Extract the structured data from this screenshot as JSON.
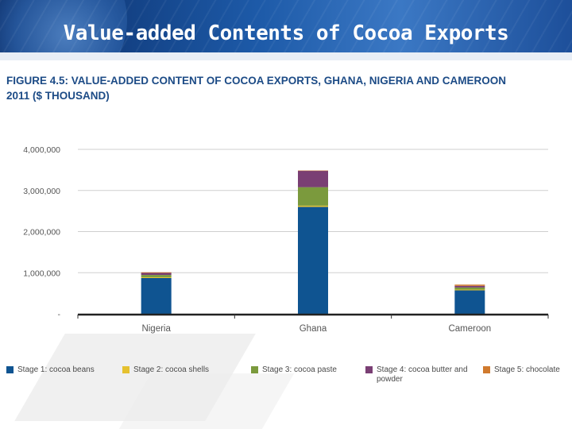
{
  "slide": {
    "title": "Value-added Contents of Cocoa Exports"
  },
  "figure": {
    "title": "FIGURE 4.5: VALUE-ADDED CONTENT OF COCOA EXPORTS, GHANA, NIGERIA AND CAMEROON 2011 ($ THOUSAND)"
  },
  "colors": {
    "header_bg": "#1d5aa8",
    "title_text": "#1c4b86",
    "grid": "#cfcfcf"
  },
  "chart_data": {
    "type": "bar",
    "stacked": true,
    "categories": [
      "Nigeria",
      "Ghana",
      "Cameroon"
    ],
    "series": [
      {
        "name": "Stage 1: cocoa beans",
        "color": "#0f5491",
        "values": [
          870000,
          2600000,
          570000
        ]
      },
      {
        "name": "Stage 2: cocoa shells",
        "color": "#e5c12f",
        "values": [
          20000,
          30000,
          20000
        ]
      },
      {
        "name": "Stage 3: cocoa paste",
        "color": "#7b9a3d",
        "values": [
          55000,
          450000,
          50000
        ]
      },
      {
        "name": "Stage 4: cocoa butter and powder",
        "color": "#7a3f74",
        "values": [
          50000,
          400000,
          40000
        ]
      },
      {
        "name": "Stage 5: chocolate",
        "color": "#d07a2e",
        "values": [
          15000,
          5000,
          30000
        ]
      }
    ],
    "ylim": [
      0,
      4000000
    ],
    "yticks": [
      0,
      1000000,
      2000000,
      3000000,
      4000000
    ],
    "ytick_labels": [
      "-",
      "1,000,000",
      "2,000,000",
      "3,000,000",
      "4,000,000"
    ],
    "grid": true,
    "legend_position": "bottom"
  }
}
